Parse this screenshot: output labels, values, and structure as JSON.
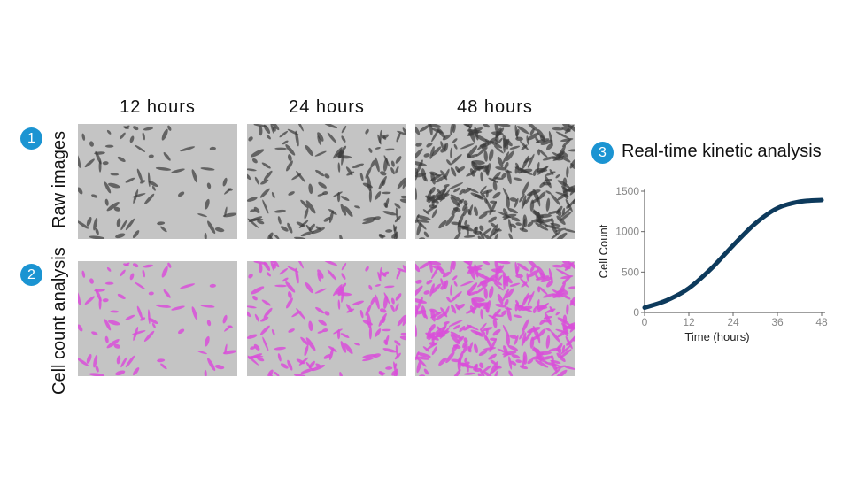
{
  "columns": [
    "12 hours",
    "24 hours",
    "48 hours"
  ],
  "rows": [
    {
      "badge": "1",
      "label": "Raw images"
    },
    {
      "badge": "2",
      "label": "Cell count analysis"
    }
  ],
  "kinetic": {
    "badge": "3",
    "title": "Real-time kinetic analysis"
  },
  "colors": {
    "badge": "#1b94d2",
    "curve": "#0d3a5c",
    "overlay": "#d94fd9",
    "cells": "#3a3a3a"
  },
  "chart_data": {
    "type": "line",
    "xlabel": "Time (hours)",
    "ylabel": "Cell Count",
    "xlim": [
      0,
      48
    ],
    "ylim": [
      0,
      1500
    ],
    "xticks": [
      0,
      12,
      24,
      36,
      48
    ],
    "yticks": [
      0,
      500,
      1000,
      1500
    ],
    "series": [
      {
        "x": [
          0,
          6,
          12,
          18,
          24,
          30,
          36,
          42,
          48
        ],
        "y": [
          60,
          150,
          300,
          540,
          830,
          1100,
          1290,
          1370,
          1390
        ]
      }
    ],
    "grid": false
  }
}
